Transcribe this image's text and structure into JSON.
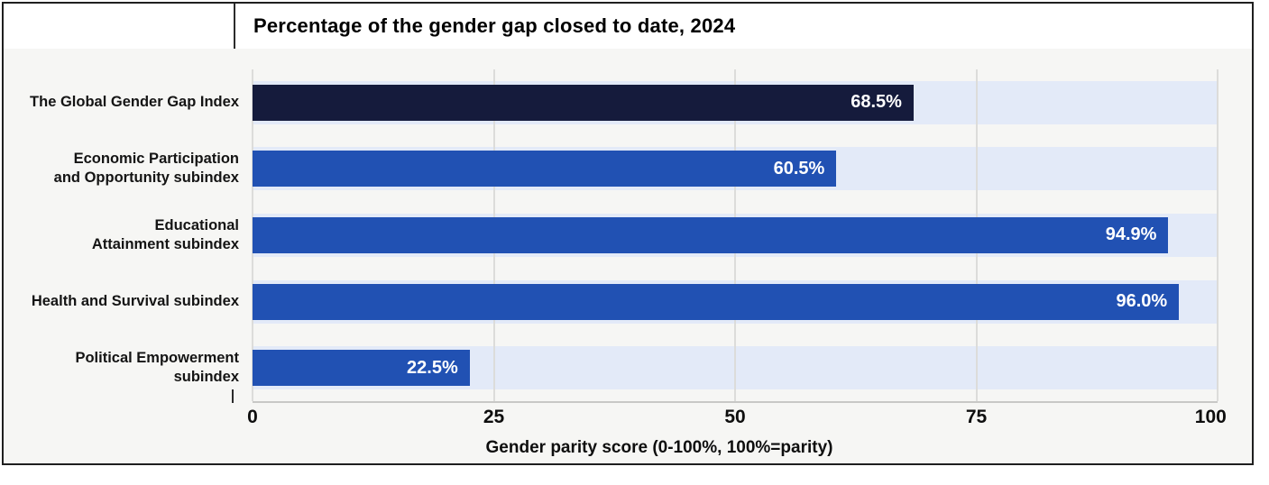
{
  "title": "Percentage of the gender gap closed to date, 2024",
  "chart_data": {
    "type": "bar",
    "orientation": "horizontal",
    "title": "Percentage of the gender gap closed to date, 2024",
    "categories": [
      "The Global Gender Gap Index",
      "Economic Participation and Opportunity subindex",
      "Educational Attainment subindex",
      "Health and Survival subindex",
      "Political Empowerment subindex"
    ],
    "category_lines": [
      [
        "The Global Gender Gap Index"
      ],
      [
        "Economic Participation",
        "and Opportunity subindex"
      ],
      [
        "Educational",
        "Attainment subindex"
      ],
      [
        "Health and Survival subindex"
      ],
      [
        "Political Empowerment",
        "subindex"
      ]
    ],
    "values": [
      68.5,
      60.5,
      94.9,
      96.0,
      22.5
    ],
    "value_labels": [
      "68.5%",
      "60.5%",
      "94.9%",
      "96.0%",
      "22.5%"
    ],
    "xlabel": "Gender parity score (0-100%, 100%=parity)",
    "xlim": [
      0,
      100
    ],
    "xticks": [
      0,
      25,
      50,
      75,
      100
    ],
    "grid": true,
    "legend": false,
    "bar_colors": [
      "#151B3C",
      "#2151B3",
      "#2151B3",
      "#2151B3",
      "#2151B3"
    ],
    "track_color": "#E3EAF8",
    "plot_background": "#F6F6F4",
    "gridline_color": "#dcdcda",
    "label_text_color": "#ffffff"
  }
}
